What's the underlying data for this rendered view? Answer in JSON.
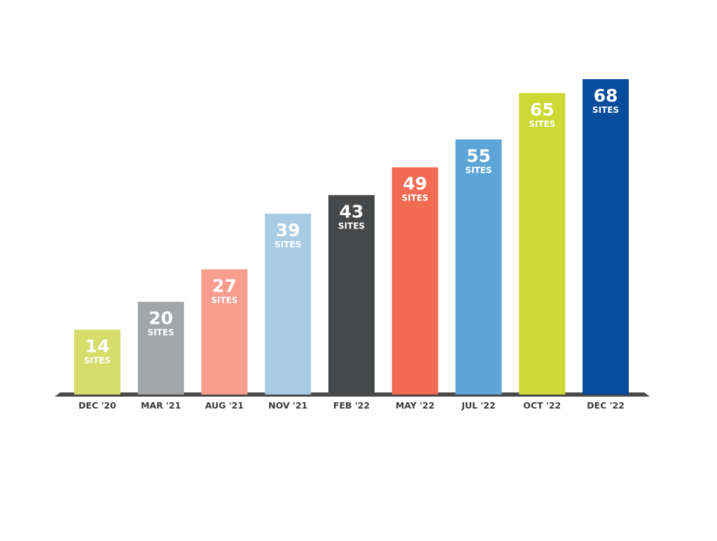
{
  "chart_data": {
    "type": "bar",
    "categories": [
      "DEC '20",
      "MAR '21",
      "AUG '21",
      "NOV '21",
      "FEB '22",
      "MAY '22",
      "JUL '22",
      "OCT '22",
      "DEC '22"
    ],
    "values": [
      14,
      20,
      27,
      39,
      43,
      49,
      55,
      65,
      68
    ],
    "value_unit_label": "SITES",
    "bar_colors": [
      "#d7dd6b",
      "#a3a6a9",
      "#f99d8f",
      "#aacbe4",
      "#474849",
      "#f26b52",
      "#5ca5d6",
      "#cbd932",
      "#054c9c"
    ],
    "baseline_color": "#4a4a4a",
    "ylim": [
      0,
      68
    ],
    "grid": false,
    "legend": "none"
  }
}
